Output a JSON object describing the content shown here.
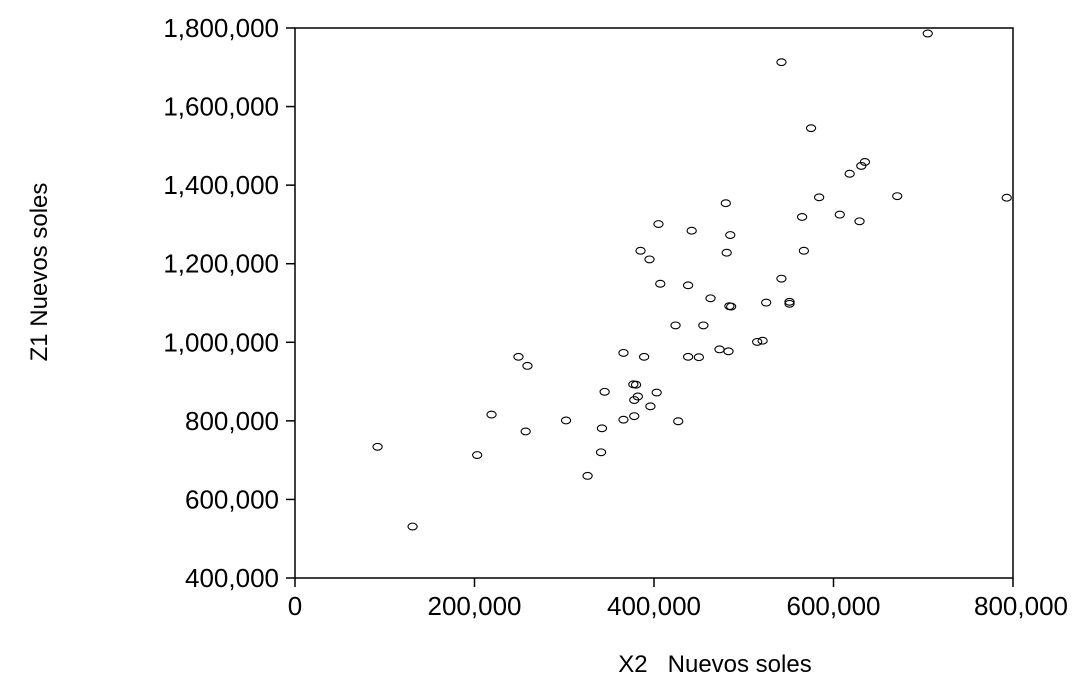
{
  "chart_data": {
    "type": "scatter",
    "xlabel": "X2   Nuevos soles",
    "ylabel": "Z1 Nuevos soles",
    "xlim": [
      0,
      800000
    ],
    "ylim": [
      400000,
      1800000
    ],
    "x_ticks": [
      0,
      200000,
      400000,
      600000,
      800000
    ],
    "x_tick_labels": [
      "0",
      "200,000",
      "400,000",
      "600,000",
      "800,000"
    ],
    "y_ticks": [
      400000,
      600000,
      800000,
      1000000,
      1200000,
      1400000,
      1600000,
      1800000
    ],
    "y_tick_labels": [
      "400,000",
      "600,000",
      "800,000",
      "1,000,000",
      "1,200,000",
      "1,400,000",
      "1,600,000",
      "1,800,000"
    ],
    "grid": false,
    "legend": "none",
    "marker": "hollow-circle",
    "colors": {
      "marker": "#000000",
      "axes": "#000000",
      "background": "#ffffff"
    },
    "points": [
      [
        92000,
        734000
      ],
      [
        131000,
        531000
      ],
      [
        203000,
        713000
      ],
      [
        219000,
        816000
      ],
      [
        249000,
        963000
      ],
      [
        257000,
        773000
      ],
      [
        259000,
        940000
      ],
      [
        302000,
        801000
      ],
      [
        326000,
        660000
      ],
      [
        341000,
        720000
      ],
      [
        342000,
        781000
      ],
      [
        345000,
        874000
      ],
      [
        366000,
        803000
      ],
      [
        366000,
        973000
      ],
      [
        377000,
        893000
      ],
      [
        378000,
        812000
      ],
      [
        378000,
        853000
      ],
      [
        380000,
        892000
      ],
      [
        382000,
        862000
      ],
      [
        385000,
        1233000
      ],
      [
        389000,
        963000
      ],
      [
        395000,
        1211000
      ],
      [
        396000,
        837000
      ],
      [
        403000,
        872000
      ],
      [
        405000,
        1301000
      ],
      [
        407000,
        1149000
      ],
      [
        424000,
        1043000
      ],
      [
        427000,
        799000
      ],
      [
        438000,
        1145000
      ],
      [
        438000,
        963000
      ],
      [
        442000,
        1284000
      ],
      [
        450000,
        962000
      ],
      [
        455000,
        1043000
      ],
      [
        463000,
        1112000
      ],
      [
        473000,
        982000
      ],
      [
        480000,
        1354000
      ],
      [
        481000,
        1228000
      ],
      [
        483000,
        977000
      ],
      [
        484000,
        1092000
      ],
      [
        485000,
        1273000
      ],
      [
        486000,
        1091000
      ],
      [
        515000,
        1001000
      ],
      [
        521000,
        1004000
      ],
      [
        525000,
        1101000
      ],
      [
        542000,
        1162000
      ],
      [
        542000,
        1713000
      ],
      [
        551000,
        1098000
      ],
      [
        551000,
        1103000
      ],
      [
        565000,
        1319000
      ],
      [
        567000,
        1233000
      ],
      [
        575000,
        1545000
      ],
      [
        584000,
        1369000
      ],
      [
        607000,
        1325000
      ],
      [
        618000,
        1429000
      ],
      [
        629000,
        1308000
      ],
      [
        631000,
        1449000
      ],
      [
        635000,
        1459000
      ],
      [
        671000,
        1372000
      ],
      [
        705000,
        1786000
      ],
      [
        793000,
        1368000
      ]
    ]
  }
}
